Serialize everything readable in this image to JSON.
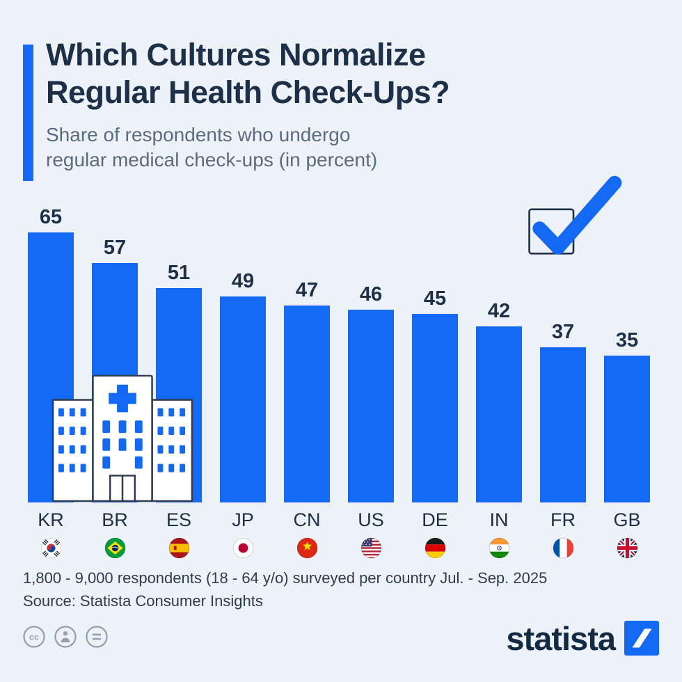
{
  "header": {
    "title_line1": "Which Cultures Normalize",
    "title_line2": "Regular Health Check-Ups?",
    "subtitle_line1": "Share of respondents who undergo",
    "subtitle_line2": "regular medical check-ups (in percent)"
  },
  "chart_data": {
    "type": "bar",
    "title": "Which Cultures Normalize Regular Health Check-Ups?",
    "subtitle": "Share of respondents who undergo regular medical check-ups (in percent)",
    "categories": [
      "KR",
      "BR",
      "ES",
      "JP",
      "CN",
      "US",
      "DE",
      "IN",
      "FR",
      "GB"
    ],
    "values": [
      65,
      57,
      51,
      49,
      47,
      46,
      45,
      42,
      37,
      35
    ],
    "unit": "percent",
    "ylim": [
      0,
      70
    ],
    "grid": false,
    "legend": "none",
    "bar_color": "#1368f4",
    "flags": [
      "south-korea-flag-icon",
      "brazil-flag-icon",
      "spain-flag-icon",
      "japan-flag-icon",
      "china-flag-icon",
      "united-states-flag-icon",
      "germany-flag-icon",
      "india-flag-icon",
      "france-flag-icon",
      "united-kingdom-flag-icon"
    ]
  },
  "footer": {
    "note": "1,800 - 9,000 respondents (18 - 64 y/o) surveyed per country Jul. - Sep. 2025",
    "source": "Source: Statista Consumer Insights",
    "brand": "statista"
  }
}
